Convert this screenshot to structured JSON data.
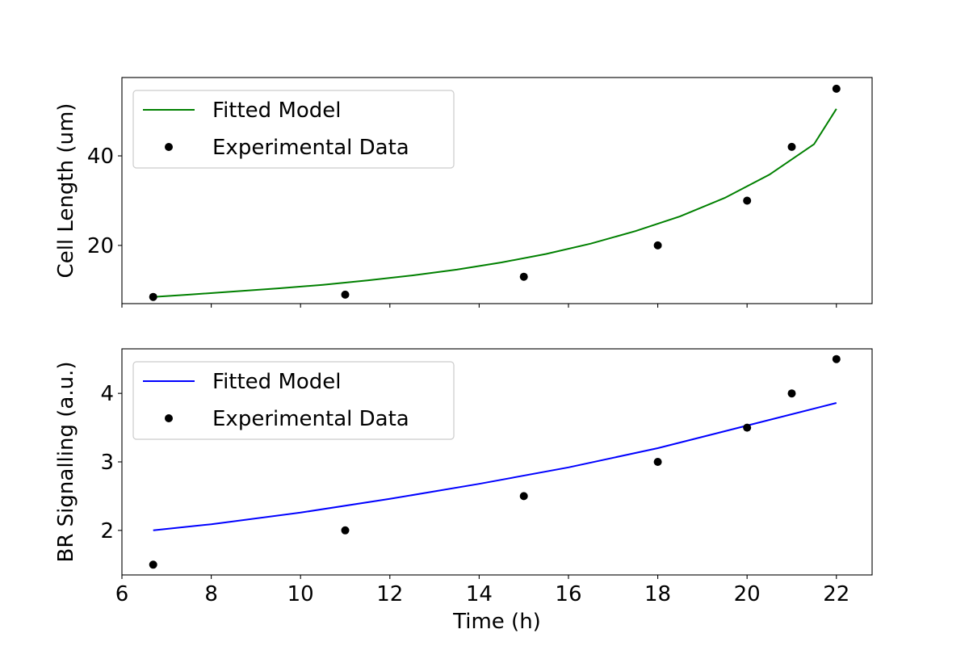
{
  "chart_data": [
    {
      "type": "line",
      "ylabel": "Cell Length (um)",
      "xlabel": "",
      "xlim": [
        6.0,
        22.8
      ],
      "ylim": [
        7.0,
        57.5
      ],
      "xticks": [
        6,
        8,
        10,
        12,
        14,
        16,
        18,
        20,
        22
      ],
      "show_xtick_labels": false,
      "yticks": [
        20,
        40
      ],
      "grid": false,
      "legend_position": "upper-left",
      "series": [
        {
          "name": "Fitted Model",
          "kind": "line",
          "color": "#008000",
          "x": [
            6.7,
            7.5,
            8.5,
            9.5,
            10.5,
            11.5,
            12.5,
            13.5,
            14.5,
            15.5,
            16.5,
            17.5,
            18.5,
            19.5,
            20.5,
            21.5,
            22.0
          ],
          "y": [
            8.5,
            9.0,
            9.7,
            10.4,
            11.2,
            12.2,
            13.3,
            14.6,
            16.2,
            18.1,
            20.4,
            23.2,
            26.5,
            30.6,
            35.8,
            42.6,
            50.5
          ]
        },
        {
          "name": "Experimental Data",
          "kind": "scatter",
          "color": "#000000",
          "x": [
            6.7,
            11,
            15,
            18,
            20,
            21,
            22
          ],
          "y": [
            8.5,
            9,
            13,
            20,
            30,
            42,
            55
          ]
        }
      ]
    },
    {
      "type": "line",
      "ylabel": "BR Signalling (a.u.)",
      "xlabel": "Time (h)",
      "xlim": [
        6.0,
        22.8
      ],
      "ylim": [
        1.35,
        4.65
      ],
      "xticks": [
        6,
        8,
        10,
        12,
        14,
        16,
        18,
        20,
        22
      ],
      "show_xtick_labels": true,
      "yticks": [
        2,
        3,
        4
      ],
      "grid": false,
      "legend_position": "upper-left",
      "series": [
        {
          "name": "Fitted Model",
          "kind": "line",
          "color": "#0000ff",
          "x": [
            6.7,
            8,
            10,
            12,
            14,
            16,
            18,
            20,
            22
          ],
          "y": [
            2.0,
            2.09,
            2.26,
            2.46,
            2.68,
            2.92,
            3.2,
            3.53,
            3.86
          ]
        },
        {
          "name": "Experimental Data",
          "kind": "scatter",
          "color": "#000000",
          "x": [
            6.7,
            11,
            15,
            18,
            20,
            21,
            22
          ],
          "y": [
            1.5,
            2.0,
            2.5,
            3.0,
            3.5,
            4.0,
            4.5
          ]
        }
      ]
    }
  ]
}
